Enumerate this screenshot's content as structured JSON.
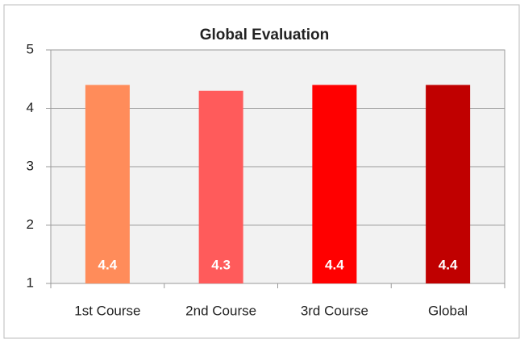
{
  "chart_data": {
    "type": "bar",
    "title": "Global Evaluation",
    "categories": [
      "1st Course",
      "2nd Course",
      "3rd Course",
      "Global"
    ],
    "values": [
      4.4,
      4.3,
      4.4,
      4.4
    ],
    "colors": [
      "#ff8c5a",
      "#ff5b5b",
      "#ff0000",
      "#c00000"
    ],
    "ylim": [
      1,
      5
    ],
    "yticks": [
      1,
      2,
      3,
      4,
      5
    ],
    "grid": true,
    "data_labels": true
  }
}
